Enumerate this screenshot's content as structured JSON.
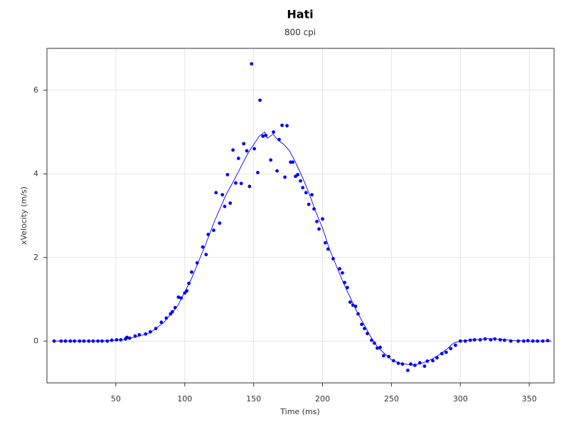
{
  "chart_data": {
    "type": "scatter",
    "title": "Hati",
    "subtitle": "800 cpi",
    "x_label": "Time (ms)",
    "y_label": "xVelocity (m/s)",
    "xlim": [
      0,
      368
    ],
    "ylim": [
      -1,
      7
    ],
    "xticks": [
      50,
      100,
      150,
      200,
      250,
      300,
      350
    ],
    "yticks": [
      0,
      2,
      4,
      6
    ],
    "grid": true,
    "series": [
      {
        "type": "scatter",
        "color": "#0000ff",
        "x": [
          5.2,
          10.3,
          13.4,
          17,
          20,
          23.7,
          26.8,
          30.4,
          33.5,
          37,
          40,
          43.8,
          47,
          50.5,
          53.6,
          57,
          58,
          60,
          64,
          67,
          71.6,
          75,
          79,
          83,
          86.6,
          89.7,
          91,
          93,
          95.4,
          97.4,
          100,
          101.5,
          103,
          105,
          109,
          113,
          115.5,
          117,
          121,
          122.7,
          125.3,
          127.3,
          129,
          131,
          133,
          135,
          137,
          139,
          141,
          142.8,
          145,
          147,
          148.5,
          150.5,
          153,
          154.6,
          156.7,
          158.8,
          162.4,
          164.4,
          167,
          168.5,
          170.6,
          172.7,
          174.2,
          176.8,
          178.4,
          180.4,
          182,
          184,
          185.6,
          188,
          190,
          192.3,
          193.8,
          195.9,
          197.4,
          200,
          202,
          204,
          207.7,
          212.4,
          214.4,
          216,
          218,
          220,
          222,
          224,
          225.8,
          228.4,
          230.4,
          232.5,
          235.6,
          237.6,
          239.7,
          241.8,
          244.3,
          248,
          251.5,
          255,
          258,
          261.9,
          264,
          267,
          270.6,
          274,
          276,
          280,
          283,
          286.6,
          289.7,
          293,
          296.4,
          300,
          303.6,
          307.2,
          310.3,
          314.4,
          318,
          322,
          325,
          328.9,
          332,
          336.6,
          342,
          346,
          349,
          352.6,
          356,
          359.8,
          363.4
        ],
        "values": [
          0,
          0,
          0,
          0,
          0,
          0,
          0,
          0,
          0,
          0,
          0,
          0,
          0.02,
          0.03,
          0.03,
          0.05,
          0.09,
          0.07,
          0.12,
          0.15,
          0.17,
          0.22,
          0.3,
          0.45,
          0.55,
          0.65,
          0.7,
          0.8,
          1.05,
          1.03,
          1.15,
          1.2,
          1.38,
          1.65,
          1.87,
          2.25,
          2.07,
          2.55,
          2.65,
          3.55,
          2.82,
          3.5,
          3.22,
          3.98,
          3.3,
          4.57,
          3.78,
          4.37,
          3.77,
          4.72,
          4.55,
          3.7,
          6.63,
          4.6,
          4.03,
          5.76,
          4.9,
          4.92,
          4.33,
          5.0,
          4.07,
          4.82,
          5.16,
          3.92,
          5.15,
          4.28,
          4.28,
          3.94,
          3.98,
          3.83,
          3.67,
          3.55,
          3.27,
          3.5,
          3.16,
          2.86,
          2.68,
          2.92,
          2.35,
          2.2,
          1.97,
          1.73,
          1.63,
          1.4,
          1.28,
          0.93,
          0.86,
          0.83,
          0.65,
          0.4,
          0.3,
          0.18,
          0.02,
          -0.05,
          -0.17,
          -0.15,
          -0.35,
          -0.37,
          -0.47,
          -0.53,
          -0.55,
          -0.7,
          -0.55,
          -0.58,
          -0.52,
          -0.6,
          -0.48,
          -0.47,
          -0.4,
          -0.3,
          -0.27,
          -0.18,
          -0.1,
          0,
          0,
          0.02,
          0.03,
          0.03,
          0.05,
          0.03,
          0.05,
          0.03,
          0.02,
          0,
          0,
          0,
          0.01,
          0,
          0,
          0,
          0.01
        ]
      },
      {
        "type": "line",
        "color": "#0000ff",
        "x": [
          5,
          40,
          55,
          65,
          75,
          85,
          95,
          105,
          115,
          122,
          130,
          135,
          139,
          142,
          146,
          150,
          154,
          158,
          160,
          164,
          168,
          172,
          176,
          180,
          185,
          190,
          195,
          200,
          205,
          210,
          215,
          220,
          225,
          230,
          235,
          240,
          245,
          250,
          255,
          260,
          265,
          270,
          275,
          280,
          285,
          290,
          295,
          300,
          310,
          320,
          330,
          340,
          350,
          366
        ],
        "values": [
          0,
          0,
          0.03,
          0.1,
          0.2,
          0.45,
          0.85,
          1.5,
          2.3,
          2.9,
          3.5,
          3.8,
          4.05,
          4.25,
          4.5,
          4.7,
          4.9,
          5.0,
          4.85,
          4.95,
          4.8,
          4.7,
          4.55,
          4.3,
          3.95,
          3.55,
          3.1,
          2.7,
          2.2,
          1.8,
          1.4,
          1.05,
          0.7,
          0.4,
          0.1,
          -0.15,
          -0.3,
          -0.45,
          -0.52,
          -0.55,
          -0.57,
          -0.55,
          -0.5,
          -0.42,
          -0.32,
          -0.2,
          -0.05,
          0,
          0.03,
          0.06,
          0.04,
          0.01,
          0,
          0
        ]
      }
    ]
  }
}
